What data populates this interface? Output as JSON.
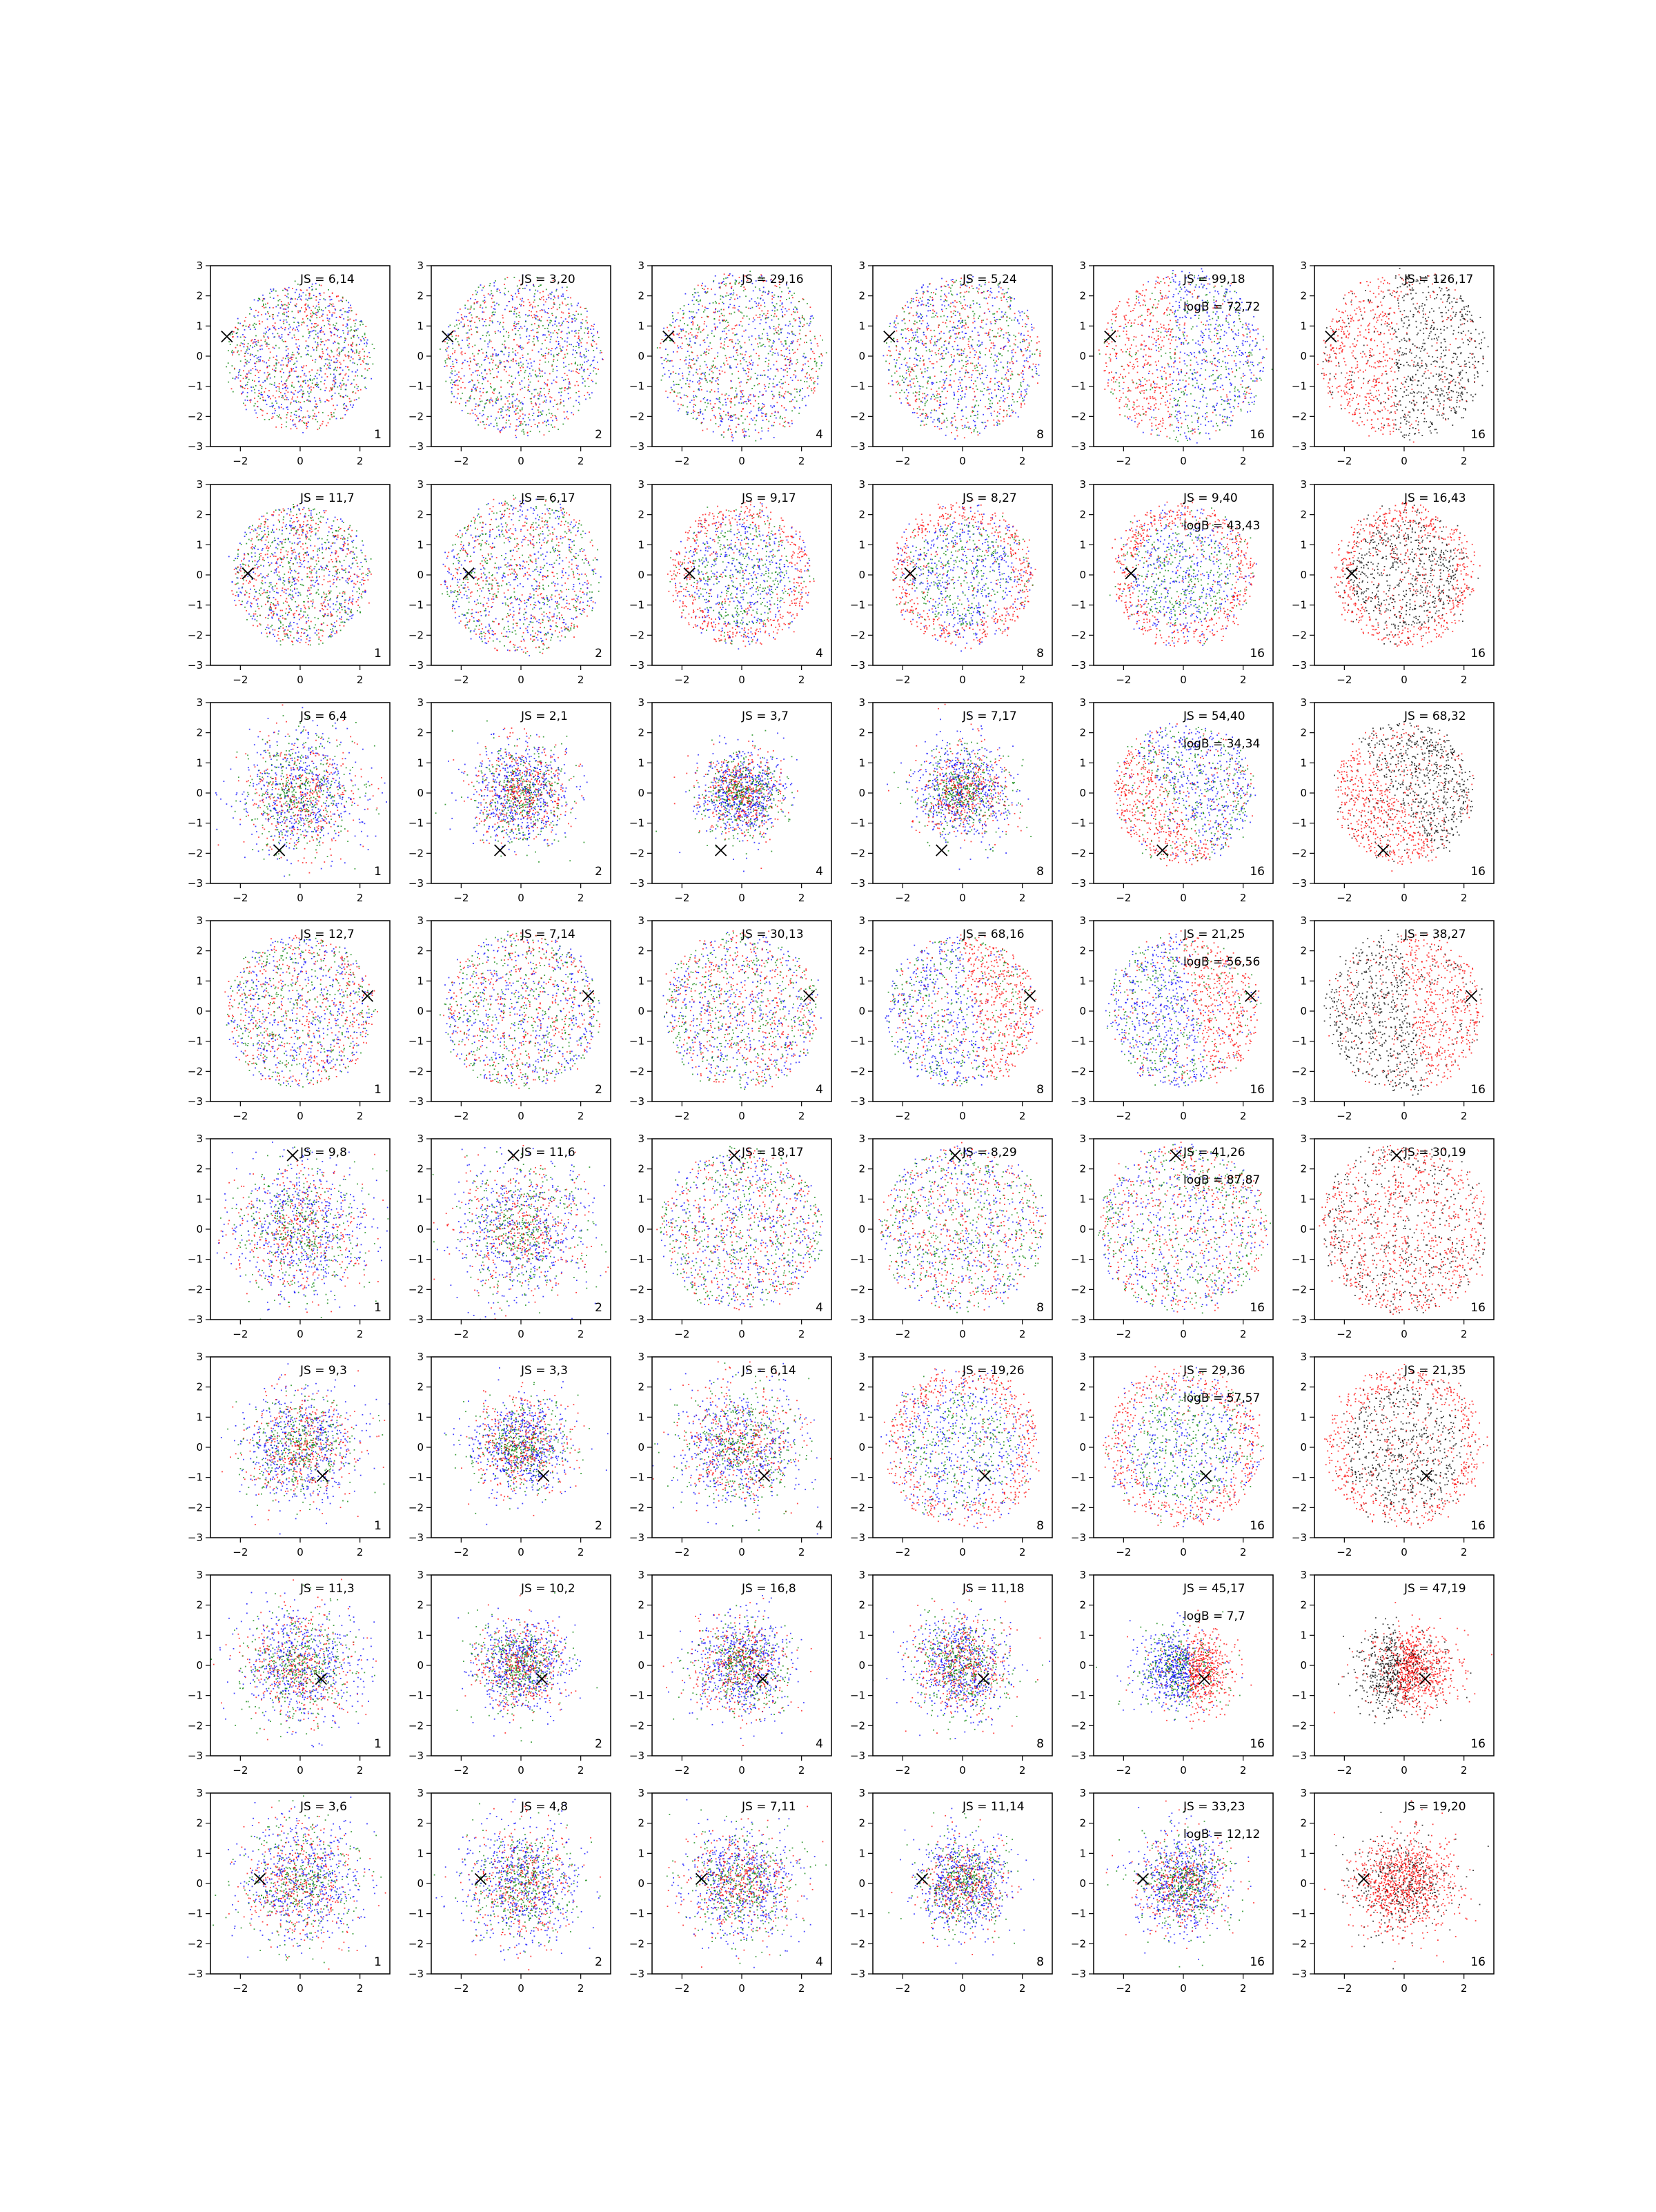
{
  "chart_data": {
    "type": "scatter",
    "grid": false,
    "xlim": [
      -3,
      3
    ],
    "ylim": [
      -3,
      3
    ],
    "xticks": [
      "−2",
      "0",
      "2"
    ],
    "yticks": [
      "3",
      "2",
      "1",
      "0",
      "−1",
      "−2",
      "−3"
    ],
    "colors": {
      "red": "#ff0000",
      "green": "#008000",
      "blue": "#0000ff",
      "black": "#000000"
    },
    "rows": [
      {
        "marker": [
          -2.45,
          0.65
        ],
        "panels": [
          {
            "js": "JS = 6,14",
            "n": "1",
            "mix": "rgb",
            "dist": "uniform",
            "r": 2.4
          },
          {
            "js": "JS = 3,20",
            "n": "2",
            "mix": "rgb",
            "dist": "uniform",
            "r": 2.65
          },
          {
            "js": "JS = 29,16",
            "n": "4",
            "mix": "rgb",
            "dist": "uniform",
            "r": 2.75
          },
          {
            "js": "JS = 5,24",
            "n": "8",
            "mix": "rgb",
            "dist": "uniform",
            "r": 2.6
          },
          {
            "js": "JS = 99,18",
            "logb": "logB = 72,72",
            "n": "16",
            "mix": "rgb",
            "dist": "crescent",
            "r": 2.75,
            "side": [
              -1,
              0
            ]
          },
          {
            "js": "JS = 126,17",
            "n": "16",
            "mix": "rk",
            "dist": "crescent",
            "r": 2.75,
            "side": [
              -1,
              0
            ]
          }
        ]
      },
      {
        "marker": [
          -1.75,
          0.05
        ],
        "panels": [
          {
            "js": "JS = 11,7",
            "n": "1",
            "mix": "rgb",
            "dist": "uniform",
            "r": 2.3
          },
          {
            "js": "JS = 6,17",
            "n": "2",
            "mix": "rgb",
            "dist": "uniform",
            "r": 2.6
          },
          {
            "js": "JS = 9,17",
            "n": "4",
            "mix": "rgb",
            "dist": "ring",
            "r": 2.35
          },
          {
            "js": "JS = 8,27",
            "n": "8",
            "mix": "rgb",
            "dist": "ring",
            "r": 2.35
          },
          {
            "js": "JS = 9,40",
            "logb": "logB = 43,43",
            "n": "16",
            "mix": "rgb",
            "dist": "ring",
            "r": 2.35
          },
          {
            "js": "JS = 16,43",
            "n": "16",
            "mix": "rk",
            "dist": "ring",
            "r": 2.35
          }
        ]
      },
      {
        "marker": [
          -0.7,
          -1.9
        ],
        "panels": [
          {
            "js": "JS = 6,4",
            "n": "1",
            "mix": "rgb",
            "dist": "gauss",
            "r": 1.0
          },
          {
            "js": "JS = 2,1",
            "n": "2",
            "mix": "rgb",
            "dist": "gauss",
            "r": 0.8
          },
          {
            "js": "JS = 3,7",
            "n": "4",
            "mix": "rgb",
            "dist": "gauss",
            "r": 0.7
          },
          {
            "js": "JS = 7,17",
            "n": "8",
            "mix": "rgb",
            "dist": "gauss",
            "r": 0.75
          },
          {
            "js": "JS = 54,40",
            "logb": "logB = 34,34",
            "n": "16",
            "mix": "rgb",
            "dist": "crescent",
            "r": 2.3,
            "side": [
              -0.8,
              -0.6
            ]
          },
          {
            "js": "JS = 68,32",
            "n": "16",
            "mix": "rk",
            "dist": "crescent",
            "r": 2.3,
            "side": [
              -0.8,
              -0.6
            ]
          }
        ]
      },
      {
        "marker": [
          2.25,
          0.5
        ],
        "panels": [
          {
            "js": "JS = 12,7",
            "n": "1",
            "mix": "rgb",
            "dist": "uniform",
            "r": 2.5
          },
          {
            "js": "JS = 7,14",
            "n": "2",
            "mix": "rgb",
            "dist": "uniform",
            "r": 2.6
          },
          {
            "js": "JS = 30,13",
            "n": "4",
            "mix": "rgb",
            "dist": "uniform",
            "r": 2.6
          },
          {
            "js": "JS = 68,16",
            "n": "8",
            "mix": "rgb",
            "dist": "crescent",
            "r": 2.5,
            "side": [
              1,
              0.2
            ]
          },
          {
            "js": "JS = 21,25",
            "logb": "logB = 56,56",
            "n": "16",
            "mix": "rgb",
            "dist": "crescent",
            "r": 2.5,
            "side": [
              1,
              0.2
            ]
          },
          {
            "js": "JS = 38,27",
            "n": "16",
            "mix": "rk",
            "dist": "crescent",
            "r": 2.6,
            "side": [
              1,
              0.2
            ]
          }
        ]
      },
      {
        "marker": [
          -0.25,
          2.45
        ],
        "panels": [
          {
            "js": "JS = 9,8",
            "n": "1",
            "mix": "rgb",
            "dist": "gauss",
            "r": 1.1
          },
          {
            "js": "JS = 11,6",
            "n": "2",
            "mix": "rgb",
            "dist": "gauss",
            "r": 1.1
          },
          {
            "js": "JS = 18,17",
            "n": "4",
            "mix": "rgb",
            "dist": "uniform",
            "r": 2.7
          },
          {
            "js": "JS = 8,29",
            "n": "8",
            "mix": "rgb",
            "dist": "uniform",
            "r": 2.75
          },
          {
            "js": "JS = 41,26",
            "logb": "logB = 87,87",
            "n": "16",
            "mix": "rgb",
            "dist": "uniform",
            "r": 2.8
          },
          {
            "js": "JS = 30,19",
            "n": "16",
            "mix": "rk",
            "dist": "uniform",
            "r": 2.8
          }
        ]
      },
      {
        "marker": [
          0.75,
          -0.95
        ],
        "panels": [
          {
            "js": "JS = 9,3",
            "n": "1",
            "mix": "rgb",
            "dist": "gauss",
            "r": 0.9
          },
          {
            "js": "JS = 3,3",
            "n": "2",
            "mix": "rgb",
            "dist": "gauss",
            "r": 0.8
          },
          {
            "js": "JS = 6,14",
            "n": "4",
            "mix": "rgb",
            "dist": "gauss",
            "r": 1.0
          },
          {
            "js": "JS = 19,26",
            "n": "8",
            "mix": "rgb",
            "dist": "ring",
            "r": 2.6
          },
          {
            "js": "JS = 29,36",
            "logb": "logB = 57,57",
            "n": "16",
            "mix": "rgb",
            "dist": "ring",
            "r": 2.6
          },
          {
            "js": "JS = 21,35",
            "n": "16",
            "mix": "rk",
            "dist": "ring",
            "r": 2.6
          }
        ]
      },
      {
        "marker": [
          0.7,
          -0.45
        ],
        "panels": [
          {
            "js": "JS = 11,3",
            "n": "1",
            "mix": "rgb",
            "dist": "gauss",
            "r": 0.95
          },
          {
            "js": "JS = 10,2",
            "n": "2",
            "mix": "rgb",
            "dist": "gauss",
            "r": 0.75
          },
          {
            "js": "JS = 16,8",
            "n": "4",
            "mix": "rgb",
            "dist": "gauss",
            "r": 0.8
          },
          {
            "js": "JS = 11,18",
            "n": "8",
            "mix": "rgb",
            "dist": "gauss",
            "r": 0.8
          },
          {
            "js": "JS = 45,17",
            "logb": "logB = 7,7",
            "n": "16",
            "mix": "rgb",
            "dist": "cluster",
            "r": 1.5
          },
          {
            "js": "JS = 47,19",
            "n": "16",
            "mix": "rk",
            "dist": "cluster",
            "r": 1.5
          }
        ]
      },
      {
        "marker": [
          -1.35,
          0.15
        ],
        "panels": [
          {
            "js": "JS = 3,6",
            "n": "1",
            "mix": "rgb",
            "dist": "gauss",
            "r": 1.0
          },
          {
            "js": "JS = 4,8",
            "n": "2",
            "mix": "rgb",
            "dist": "gauss",
            "r": 0.95
          },
          {
            "js": "JS = 7,11",
            "n": "4",
            "mix": "rgb",
            "dist": "gauss",
            "r": 0.9
          },
          {
            "js": "JS = 11,14",
            "n": "8",
            "mix": "rgb",
            "dist": "gauss",
            "r": 0.75
          },
          {
            "js": "JS = 33,23",
            "logb": "logB = 12,12",
            "n": "16",
            "mix": "rgb",
            "dist": "gauss",
            "r": 0.8
          },
          {
            "js": "JS = 19,20",
            "n": "16",
            "mix": "rk",
            "dist": "gauss",
            "r": 0.8
          }
        ]
      }
    ]
  }
}
